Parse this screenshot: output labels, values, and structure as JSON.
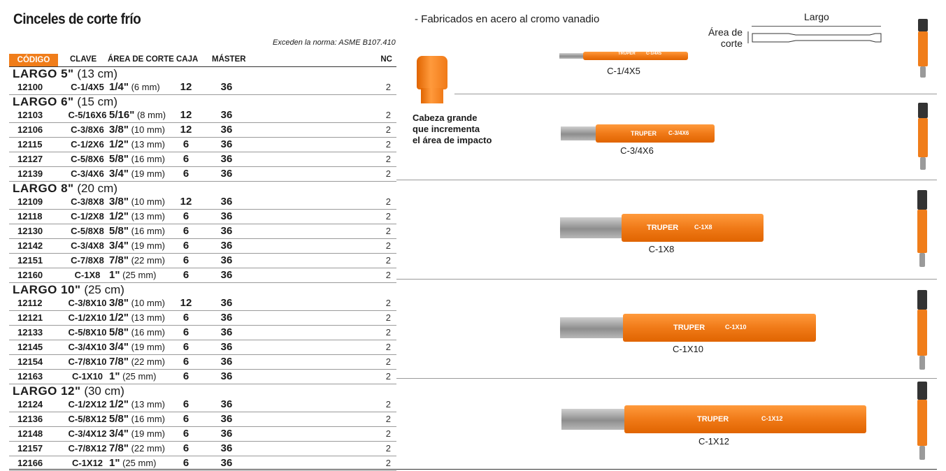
{
  "title": "Cinceles de corte frío",
  "norm_note": "Exceden la norma: ASME B107.410",
  "feature": "- Fabricados en acero al cromo vanadio",
  "callout": [
    "Cabeza grande",
    "que incrementa",
    "el área de impacto"
  ],
  "diagram": {
    "length_label": "Largo",
    "area_label": [
      "Área de",
      "corte"
    ]
  },
  "table": {
    "headers": {
      "code": "CÓDIGO",
      "key": "CLAVE",
      "area": "ÁREA DE CORTE",
      "caja": "CAJA",
      "master": "MÁSTER",
      "nc": "NC"
    },
    "groups": [
      {
        "label": "LARGO 5\"",
        "cm": "(13 cm)",
        "rows": [
          {
            "code": "12100",
            "key": "C-1/4X5",
            "frac": "1/4\"",
            "mm": "(6 mm)",
            "caja": "12",
            "master": "36",
            "nc": "2"
          }
        ]
      },
      {
        "label": "LARGO 6\"",
        "cm": "(15 cm)",
        "rows": [
          {
            "code": "12103",
            "key": "C-5/16X6",
            "frac": "5/16\"",
            "mm": "(8 mm)",
            "caja": "12",
            "master": "36",
            "nc": "2"
          },
          {
            "code": "12106",
            "key": "C-3/8X6",
            "frac": "3/8\"",
            "mm": "(10 mm)",
            "caja": "12",
            "master": "36",
            "nc": "2"
          },
          {
            "code": "12115",
            "key": "C-1/2X6",
            "frac": "1/2\"",
            "mm": "(13 mm)",
            "caja": "6",
            "master": "36",
            "nc": "2"
          },
          {
            "code": "12127",
            "key": "C-5/8X6",
            "frac": "5/8\"",
            "mm": "(16 mm)",
            "caja": "6",
            "master": "36",
            "nc": "2"
          },
          {
            "code": "12139",
            "key": "C-3/4X6",
            "frac": "3/4\"",
            "mm": "(19 mm)",
            "caja": "6",
            "master": "36",
            "nc": "2"
          }
        ]
      },
      {
        "label": "LARGO 8\"",
        "cm": "(20 cm)",
        "rows": [
          {
            "code": "12109",
            "key": "C-3/8X8",
            "frac": "3/8\"",
            "mm": "(10 mm)",
            "caja": "12",
            "master": "36",
            "nc": "2"
          },
          {
            "code": "12118",
            "key": "C-1/2X8",
            "frac": "1/2\"",
            "mm": "(13 mm)",
            "caja": "6",
            "master": "36",
            "nc": "2"
          },
          {
            "code": "12130",
            "key": "C-5/8X8",
            "frac": "5/8\"",
            "mm": "(16 mm)",
            "caja": "6",
            "master": "36",
            "nc": "2"
          },
          {
            "code": "12142",
            "key": "C-3/4X8",
            "frac": "3/4\"",
            "mm": "(19 mm)",
            "caja": "6",
            "master": "36",
            "nc": "2"
          },
          {
            "code": "12151",
            "key": "C-7/8X8",
            "frac": "7/8\"",
            "mm": "(22 mm)",
            "caja": "6",
            "master": "36",
            "nc": "2"
          },
          {
            "code": "12160",
            "key": "C-1X8",
            "frac": "1\"",
            "mm": "(25 mm)",
            "caja": "6",
            "master": "36",
            "nc": "2"
          }
        ]
      },
      {
        "label": "LARGO 10\"",
        "cm": "(25 cm)",
        "rows": [
          {
            "code": "12112",
            "key": "C-3/8X10",
            "frac": "3/8\"",
            "mm": "(10 mm)",
            "caja": "12",
            "master": "36",
            "nc": "2"
          },
          {
            "code": "12121",
            "key": "C-1/2X10",
            "frac": "1/2\"",
            "mm": "(13 mm)",
            "caja": "6",
            "master": "36",
            "nc": "2"
          },
          {
            "code": "12133",
            "key": "C-5/8X10",
            "frac": "5/8\"",
            "mm": "(16 mm)",
            "caja": "6",
            "master": "36",
            "nc": "2"
          },
          {
            "code": "12145",
            "key": "C-3/4X10",
            "frac": "3/4\"",
            "mm": "(19 mm)",
            "caja": "6",
            "master": "36",
            "nc": "2"
          },
          {
            "code": "12154",
            "key": "C-7/8X10",
            "frac": "7/8\"",
            "mm": "(22 mm)",
            "caja": "6",
            "master": "36",
            "nc": "2"
          },
          {
            "code": "12163",
            "key": "C-1X10",
            "frac": "1\"",
            "mm": "(25 mm)",
            "caja": "6",
            "master": "36",
            "nc": "2"
          }
        ]
      },
      {
        "label": "LARGO 12\"",
        "cm": "(30 cm)",
        "rows": [
          {
            "code": "12124",
            "key": "C-1/2X12",
            "frac": "1/2\"",
            "mm": "(13 mm)",
            "caja": "6",
            "master": "36",
            "nc": "2"
          },
          {
            "code": "12136",
            "key": "C-5/8X12",
            "frac": "5/8\"",
            "mm": "(16 mm)",
            "caja": "6",
            "master": "36",
            "nc": "2"
          },
          {
            "code": "12148",
            "key": "C-3/4X12",
            "frac": "3/4\"",
            "mm": "(19 mm)",
            "caja": "6",
            "master": "36",
            "nc": "2"
          },
          {
            "code": "12157",
            "key": "C-7/8X12",
            "frac": "7/8\"",
            "mm": "(22 mm)",
            "caja": "6",
            "master": "36",
            "nc": "2"
          },
          {
            "code": "12166",
            "key": "C-1X12",
            "frac": "1\"",
            "mm": "(25 mm)",
            "caja": "6",
            "master": "36",
            "nc": "2"
          }
        ]
      }
    ]
  },
  "products": [
    {
      "caption": "C-1/4X5",
      "brand": "TRUPER",
      "model": "C-1/4X5"
    },
    {
      "caption": "C-3/4X6",
      "brand": "TRUPER",
      "model": "C-3/4X6"
    },
    {
      "caption": "C-1X8",
      "brand": "TRUPER",
      "model": "C-1X8"
    },
    {
      "caption": "C-1X10",
      "brand": "TRUPER",
      "model": "C-1X10"
    },
    {
      "caption": "C-1X12",
      "brand": "TRUPER",
      "model": "C-1X12"
    }
  ],
  "colors": {
    "accent": "#f07d1a",
    "steel": "#9a9a9a",
    "text": "#1a1a1a"
  }
}
